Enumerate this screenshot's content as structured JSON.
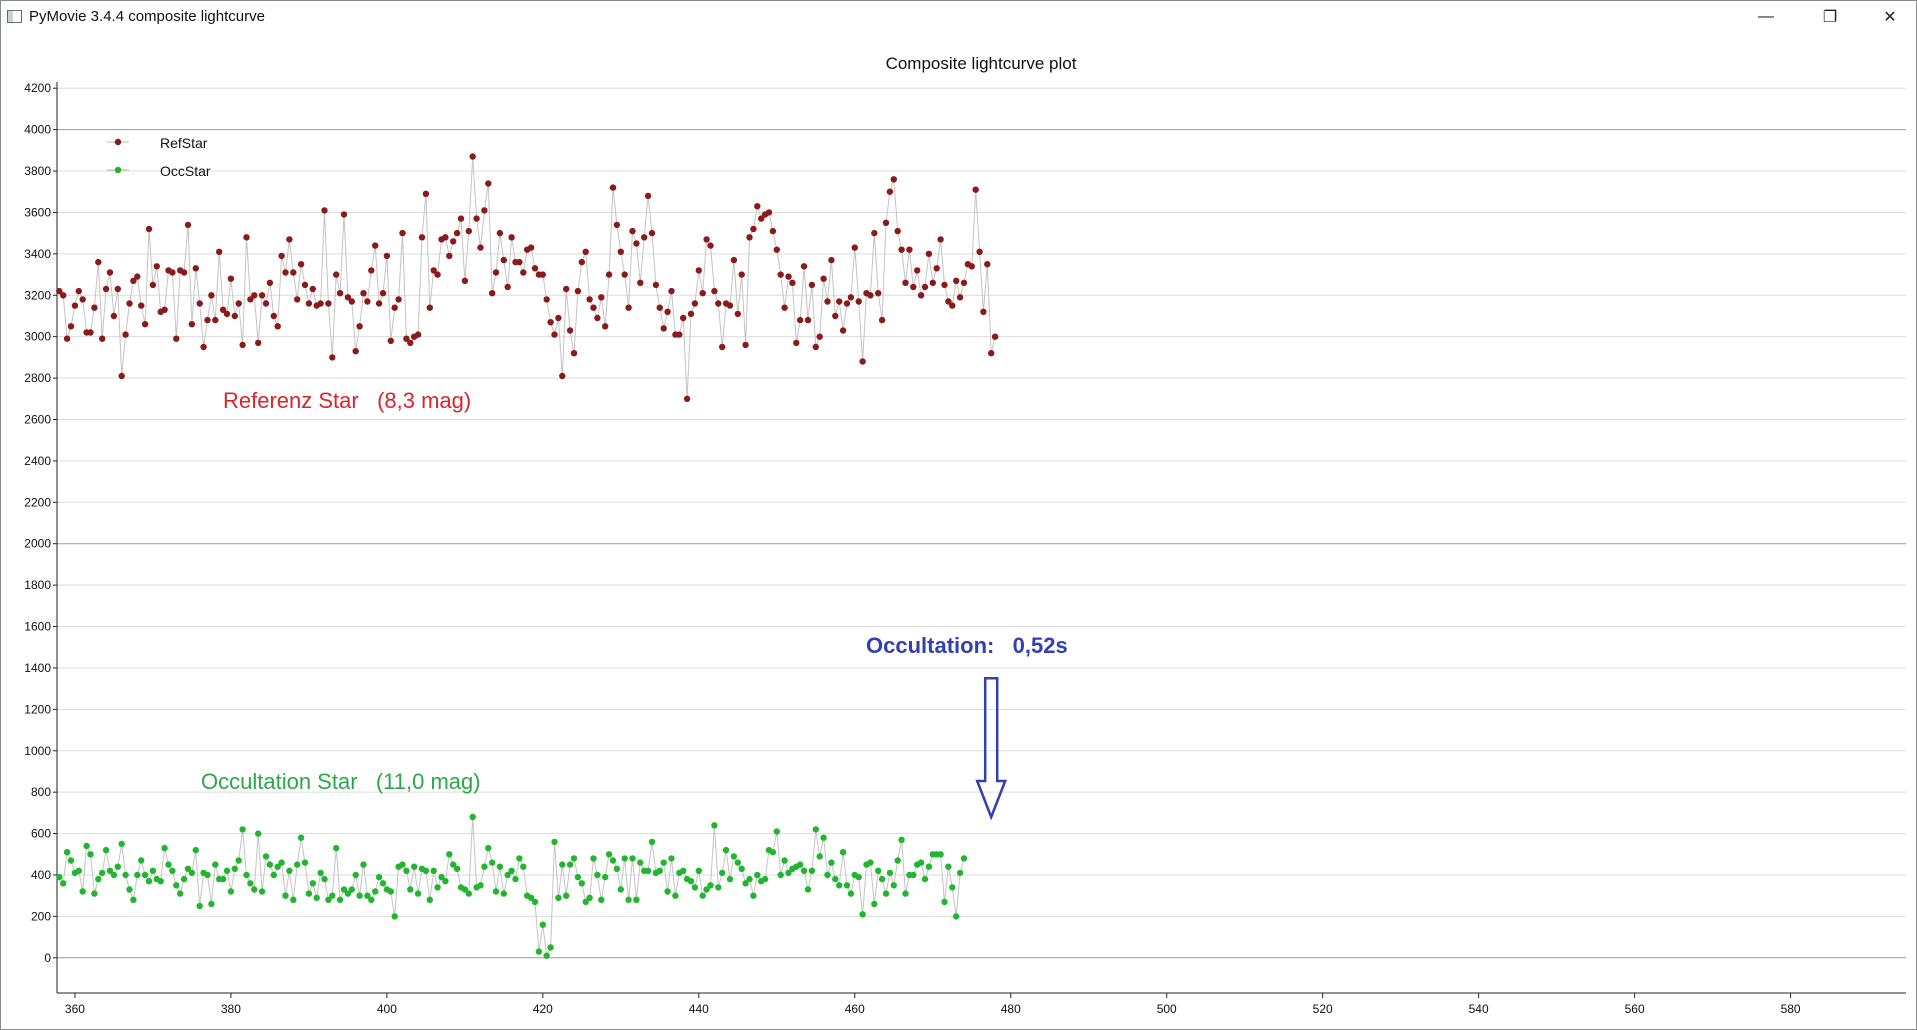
{
  "window": {
    "title": "PyMovie 3.4.4 composite lightcurve",
    "minimize_glyph": "—",
    "maximize_glyph": "❐",
    "close_glyph": "✕"
  },
  "chart_data": {
    "type": "line",
    "title": "Composite lightcurve plot",
    "xlabel": "",
    "ylabel": "",
    "xlim": [
      357.7,
      594.8
    ],
    "ylim": [
      -170,
      4230
    ],
    "x_ticks": [
      360,
      380,
      400,
      420,
      440,
      460,
      480,
      500,
      520,
      540,
      560,
      580
    ],
    "y_ticks": [
      0,
      200,
      400,
      600,
      800,
      1000,
      1200,
      1400,
      1600,
      1800,
      2000,
      2200,
      2400,
      2600,
      2800,
      3000,
      3200,
      3400,
      3600,
      3800,
      4000,
      4200
    ],
    "grid": true,
    "legend": "top-left",
    "x_start": 358,
    "x_step": 0.5,
    "series": [
      {
        "name": "RefStar",
        "color": "#8b1a1a",
        "values": [
          3220,
          3200,
          2990,
          3050,
          3150,
          3220,
          3180,
          3020,
          3020,
          3140,
          3360,
          2990,
          3230,
          3310,
          3100,
          3230,
          2810,
          3010,
          3160,
          3270,
          3290,
          3150,
          3060,
          3520,
          3250,
          3340,
          3120,
          3130,
          3320,
          3310,
          2990,
          3320,
          3310,
          3540,
          3060,
          3330,
          3160,
          2950,
          3080,
          3200,
          3080,
          3410,
          3130,
          3110,
          3280,
          3100,
          3160,
          2960,
          3480,
          3180,
          3200,
          2970,
          3200,
          3160,
          3260,
          3100,
          3050,
          3390,
          3310,
          3470,
          3310,
          3180,
          3350,
          3250,
          3160,
          3230,
          3150,
          3160,
          3610,
          3160,
          2900,
          3300,
          3210,
          3590,
          3190,
          3170,
          2930,
          3050,
          3210,
          3170,
          3320,
          3440,
          3160,
          3210,
          3390,
          2980,
          3140,
          3180,
          3500,
          2990,
          2970,
          3000,
          3010,
          3480,
          3690,
          3140,
          3320,
          3300,
          3470,
          3480,
          3390,
          3460,
          3500,
          3570,
          3270,
          3510,
          3870,
          3570,
          3430,
          3610,
          3740,
          3210,
          3310,
          3500,
          3370,
          3240,
          3480,
          3360,
          3360,
          3310,
          3420,
          3430,
          3330,
          3300,
          3300,
          3180,
          3070,
          3010,
          3090,
          2810,
          3230,
          3030,
          2920,
          3220,
          3360,
          3410,
          3180,
          3140,
          3090,
          3190,
          3050,
          3300,
          3720,
          3540,
          3410,
          3300,
          3140,
          3510,
          3450,
          3260,
          3480,
          3680,
          3500,
          3250,
          3140,
          3040,
          3120,
          3220,
          3010,
          3010,
          3090,
          2700,
          3110,
          3160,
          3320,
          3210,
          3470,
          3440,
          3220,
          3160,
          2950,
          3160,
          3150,
          3370,
          3110,
          3300,
          2960,
          3480,
          3520,
          3630,
          3570,
          3590,
          3600,
          3510,
          3420,
          3300,
          3140,
          3290,
          3260,
          2970,
          3080,
          3340,
          3080,
          3250,
          2950,
          3000,
          3280,
          3170,
          3370,
          3100,
          3170,
          3030,
          3160,
          3190,
          3430,
          3170,
          2880,
          3210,
          3200,
          3500,
          3210,
          3080,
          3550,
          3700,
          3760,
          3510,
          3420,
          3260,
          3420,
          3240,
          3320,
          3200,
          3240,
          3400,
          3260,
          3330,
          3470,
          3250,
          3170,
          3150,
          3270,
          3190,
          3260,
          3350,
          3340,
          3710,
          3410,
          3120,
          3350,
          2920,
          3000
        ]
      },
      {
        "name": "OccStar",
        "color": "#22b52f",
        "values": [
          390,
          360,
          510,
          470,
          410,
          420,
          320,
          540,
          500,
          310,
          380,
          410,
          520,
          420,
          400,
          440,
          550,
          400,
          330,
          280,
          400,
          470,
          400,
          370,
          420,
          380,
          370,
          530,
          450,
          420,
          350,
          310,
          380,
          430,
          410,
          520,
          250,
          410,
          400,
          260,
          450,
          380,
          380,
          420,
          320,
          430,
          470,
          620,
          400,
          360,
          330,
          600,
          320,
          490,
          450,
          400,
          440,
          460,
          300,
          420,
          280,
          450,
          580,
          460,
          310,
          360,
          290,
          410,
          380,
          280,
          300,
          530,
          280,
          330,
          310,
          330,
          400,
          300,
          450,
          300,
          280,
          320,
          390,
          360,
          330,
          320,
          200,
          440,
          450,
          420,
          330,
          440,
          310,
          430,
          420,
          280,
          420,
          340,
          390,
          370,
          500,
          450,
          430,
          340,
          330,
          310,
          680,
          340,
          350,
          440,
          530,
          460,
          320,
          440,
          310,
          400,
          420,
          380,
          480,
          440,
          300,
          290,
          270,
          30,
          160,
          10,
          50,
          560,
          290,
          450,
          300,
          450,
          480,
          390,
          360,
          270,
          290,
          480,
          400,
          280,
          390,
          500,
          470,
          430,
          330,
          480,
          280,
          480,
          280,
          460,
          420,
          420,
          560,
          410,
          420,
          460,
          320,
          480,
          300,
          410,
          420,
          380,
          370,
          340,
          420,
          300,
          330,
          350,
          640,
          340,
          410,
          520,
          380,
          490,
          460,
          430,
          360,
          380,
          300,
          400,
          370,
          380,
          520,
          510,
          610,
          400,
          470,
          410,
          430,
          440,
          450,
          420,
          330,
          420,
          620,
          490,
          580,
          400,
          460,
          380,
          350,
          510,
          350,
          310,
          400,
          390,
          210,
          450,
          460,
          260,
          420,
          380,
          310,
          410,
          350,
          470,
          570,
          310,
          400,
          400,
          450,
          460,
          380,
          440,
          500,
          500,
          500,
          270,
          440,
          340,
          200,
          410,
          480
        ]
      }
    ],
    "annotations": {
      "ref_label": "Referenz Star   (8,3 mag)",
      "occ_label": "Occultation Star   (11,0 mag)",
      "occultation_label": "Occultation:   0,52s",
      "arrow_x": 477.5,
      "arrow_value": 680,
      "ref_label_color": "#d9262d",
      "occ_label_color": "#2aa84a",
      "occultation_color": "#3340b0"
    }
  }
}
